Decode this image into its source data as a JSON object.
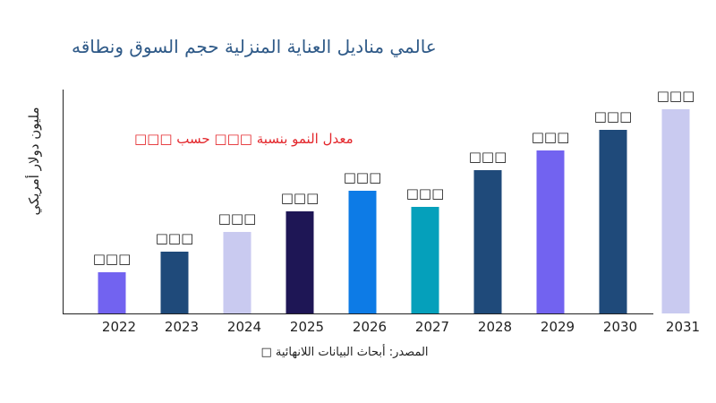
{
  "chart_data": {
    "type": "bar",
    "title": "عالمي مناديل العناية المنزلية حجم السوق ونطاقه",
    "ylabel": "مليون دولار أمريكي",
    "xlabel": "",
    "annotation": "معدل النمو بنسبة □□□ حسب □□□",
    "source": "المصدر: أبحاث البيانات اللانهائية □",
    "categories": [
      "2022",
      "2023",
      "2024",
      "2025",
      "2026",
      "2027",
      "2028",
      "2029",
      "2030",
      "2031"
    ],
    "values": [
      46,
      69,
      91,
      114,
      137,
      119,
      160,
      182,
      205,
      228
    ],
    "data_labels": [
      "□□□",
      "□□□",
      "□□□",
      "□□□",
      "□□□",
      "□□□",
      "□□□",
      "□□□",
      "□□□",
      "□□□"
    ],
    "colors": [
      "#7263f0",
      "#1f4a7a",
      "#c9caf0",
      "#1e1655",
      "#0d7be6",
      "#05a0bb",
      "#1f4a7a",
      "#7263f0",
      "#1f4a7a",
      "#c9caf0"
    ],
    "ylim": [
      0,
      250
    ],
    "grid": false,
    "legend": "none"
  }
}
